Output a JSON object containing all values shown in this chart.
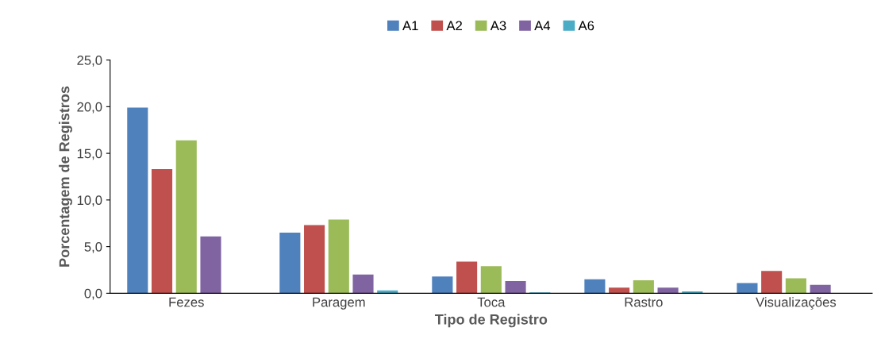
{
  "chart_data": {
    "type": "bar",
    "xlabel": "Tipo de Registro",
    "ylabel": "Porcentagem de Registros",
    "categories": [
      "Fezes",
      "Paragem",
      "Toca",
      "Rastro",
      "Visualizações"
    ],
    "series": [
      {
        "name": "A1",
        "color": "#4f81bd",
        "values": [
          19.9,
          6.5,
          1.8,
          1.5,
          1.1
        ]
      },
      {
        "name": "A2",
        "color": "#c0504d",
        "values": [
          13.3,
          7.3,
          3.4,
          0.6,
          2.4
        ]
      },
      {
        "name": "A3",
        "color": "#9bbb59",
        "values": [
          16.4,
          7.9,
          2.9,
          1.4,
          1.6
        ]
      },
      {
        "name": "A4",
        "color": "#8064a2",
        "values": [
          6.1,
          2.0,
          1.3,
          0.6,
          0.9
        ]
      },
      {
        "name": "A6",
        "color": "#4bacc6",
        "values": [
          0,
          0.3,
          0.1,
          0.2,
          0
        ]
      }
    ],
    "ylim": [
      0,
      25
    ],
    "yticks": [
      {
        "value": 0,
        "label": "0,0"
      },
      {
        "value": 5,
        "label": "5,0"
      },
      {
        "value": 10,
        "label": "10,0"
      },
      {
        "value": 15,
        "label": "15,0"
      },
      {
        "value": 20,
        "label": "20,0"
      },
      {
        "value": 25,
        "label": "25,0"
      }
    ],
    "grid": false,
    "legend": "top"
  }
}
